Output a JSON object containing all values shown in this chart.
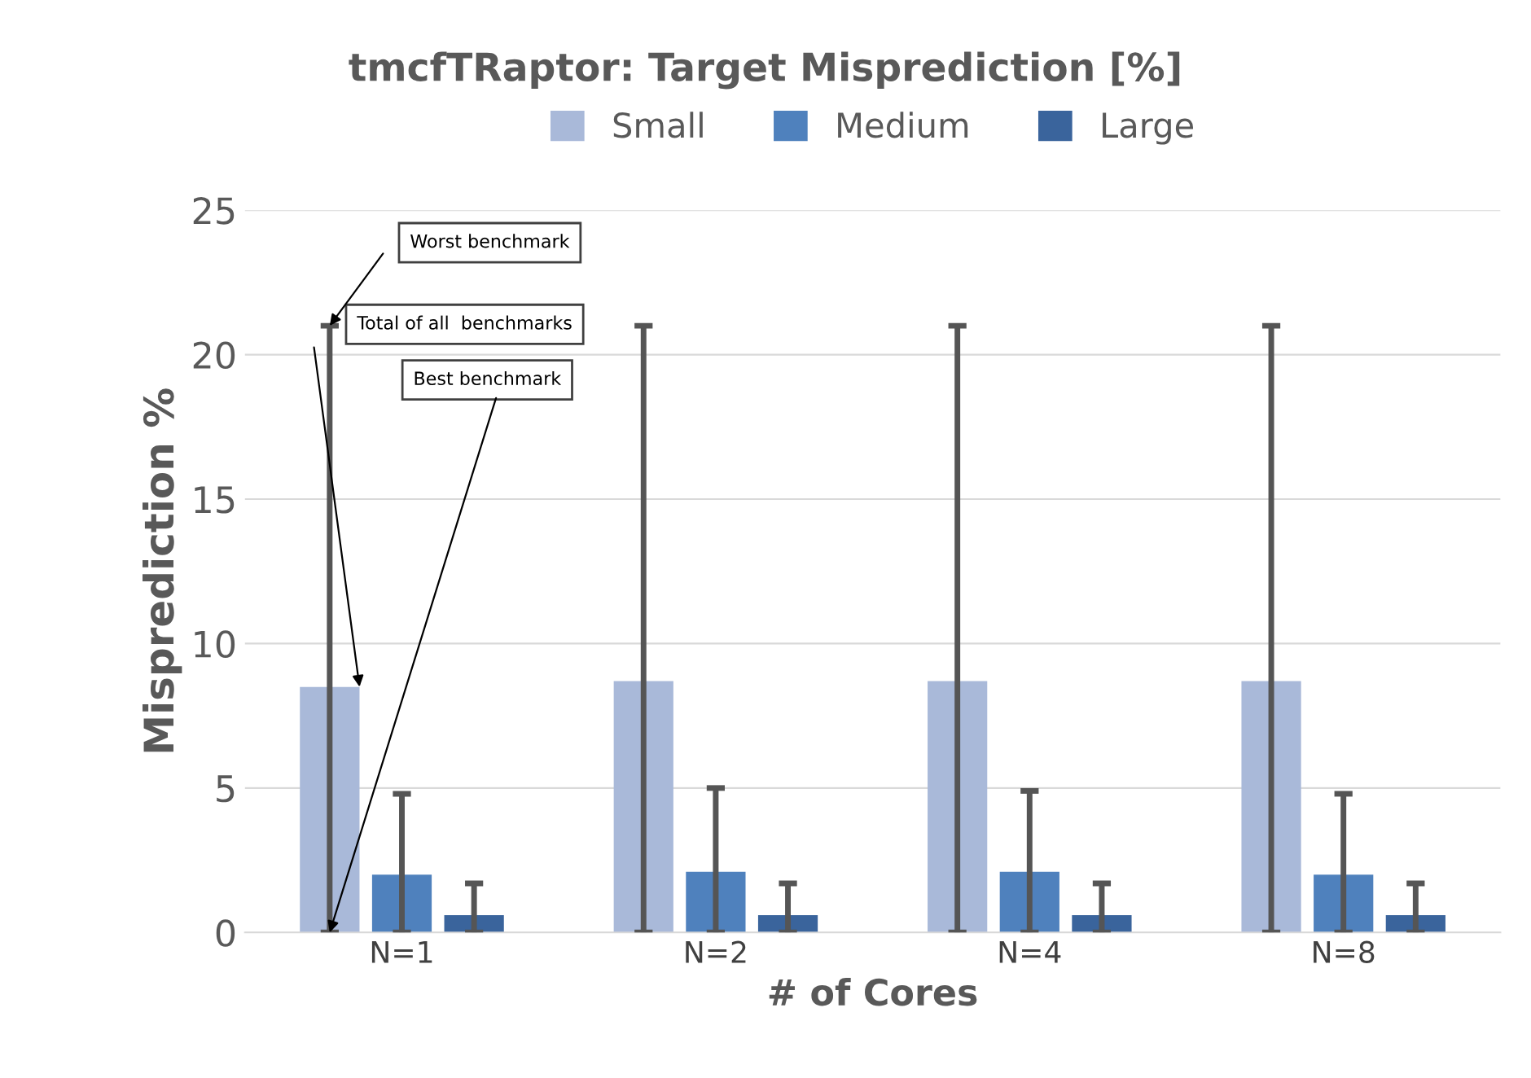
{
  "chart_data": {
    "type": "bar",
    "title": "tmcfTRaptor: Target Misprediction [%]",
    "xlabel": "# of Cores",
    "ylabel": "Misprediction %",
    "categories": [
      "N=1",
      "N=2",
      "N=4",
      "N=8"
    ],
    "series": [
      {
        "name": "Small",
        "color": "#a9b9d9",
        "values": [
          8.5,
          8.7,
          8.7,
          8.7
        ],
        "errors": [
          [
            0,
            21
          ],
          [
            0,
            21
          ],
          [
            0,
            21
          ],
          [
            0,
            21
          ]
        ]
      },
      {
        "name": "Medium",
        "color": "#4f81bd",
        "values": [
          2.0,
          2.1,
          2.1,
          2.0
        ],
        "errors": [
          [
            0,
            4.8
          ],
          [
            0,
            5.0
          ],
          [
            0,
            4.9
          ],
          [
            0,
            4.8
          ]
        ]
      },
      {
        "name": "Large",
        "color": "#3a649c",
        "values": [
          0.6,
          0.6,
          0.6,
          0.6
        ],
        "errors": [
          [
            0,
            1.7
          ],
          [
            0,
            1.7
          ],
          [
            0,
            1.7
          ],
          [
            0,
            1.7
          ]
        ]
      }
    ],
    "ylim": [
      0,
      25
    ],
    "yticks": [
      0,
      5,
      10,
      15,
      20,
      25
    ],
    "grid": "y",
    "legend": "top",
    "annotations": [
      "Worst benchmark",
      "Total of all  benchmarks",
      "Best benchmark"
    ]
  }
}
